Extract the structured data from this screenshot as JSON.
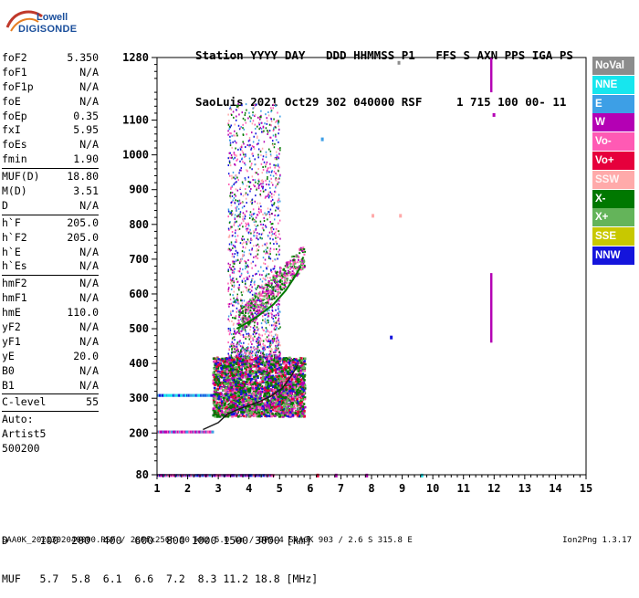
{
  "logo": {
    "brand": "Lowell",
    "product": "DIGISONDE"
  },
  "header": {
    "columns_line": "Station YYYY DAY   DDD HHMMSS P1   FFS S AXN PPS IGA PS",
    "values_line": "SaoLuis 2021 Oct29 302 040000 RSF     1 715 100 00- 11"
  },
  "params": {
    "group1": [
      {
        "name": "foF2",
        "value": "5.350"
      },
      {
        "name": "foF1",
        "value": "N/A"
      },
      {
        "name": "foF1p",
        "value": "N/A"
      },
      {
        "name": "foE",
        "value": "N/A"
      },
      {
        "name": "foEp",
        "value": "0.35"
      },
      {
        "name": "fxI",
        "value": "5.95"
      },
      {
        "name": "foEs",
        "value": "N/A"
      },
      {
        "name": "fmin",
        "value": "1.90"
      }
    ],
    "group2": [
      {
        "name": "MUF(D)",
        "value": "18.80"
      },
      {
        "name": "M(D)",
        "value": "3.51"
      },
      {
        "name": "D",
        "value": "N/A"
      }
    ],
    "group3": [
      {
        "name": "h`F",
        "value": "205.0"
      },
      {
        "name": "h`F2",
        "value": "205.0"
      },
      {
        "name": "h`E",
        "value": "N/A"
      },
      {
        "name": "h`Es",
        "value": "N/A"
      }
    ],
    "group4": [
      {
        "name": "hmF2",
        "value": "N/A"
      },
      {
        "name": "hmF1",
        "value": "N/A"
      },
      {
        "name": "hmE",
        "value": "110.0"
      },
      {
        "name": "yF2",
        "value": "N/A"
      },
      {
        "name": "yF1",
        "value": "N/A"
      },
      {
        "name": "yE",
        "value": "20.0"
      },
      {
        "name": "B0",
        "value": "N/A"
      },
      {
        "name": "B1",
        "value": "N/A"
      }
    ],
    "c_level": {
      "name": "C-level",
      "value": "55"
    },
    "auto_lines": [
      "Auto:",
      "Artist5",
      "500200"
    ]
  },
  "legend": [
    {
      "label": "NoVal",
      "color": "#8c8c8c"
    },
    {
      "label": "NNE",
      "color": "#17e6ee"
    },
    {
      "label": "E",
      "color": "#3d9fe6"
    },
    {
      "label": "W",
      "color": "#b400b4"
    },
    {
      "label": "Vo-",
      "color": "#ff5ab4"
    },
    {
      "label": "Vo+",
      "color": "#e6003c"
    },
    {
      "label": "SSW",
      "color": "#ffaaaa"
    },
    {
      "label": "X-",
      "color": "#007800"
    },
    {
      "label": "X+",
      "color": "#64b45a"
    },
    {
      "label": "SSE",
      "color": "#c8c800"
    },
    {
      "label": "NNW",
      "color": "#1414dc"
    }
  ],
  "chart_data": {
    "type": "scatter",
    "xlim": [
      1,
      15
    ],
    "ylim": [
      80,
      1280
    ],
    "x_ticks": [
      "1",
      "2",
      "3",
      "4",
      "5",
      "6",
      "7",
      "8",
      "9",
      "10",
      "11",
      "12",
      "13",
      "14",
      "15"
    ],
    "y_ticks": [
      {
        "value": 80,
        "label": "80"
      },
      {
        "value": 200,
        "label": "200"
      },
      {
        "value": 300,
        "label": "300"
      },
      {
        "value": 400,
        "label": "400"
      },
      {
        "value": 500,
        "label": "500"
      },
      {
        "value": 600,
        "label": "600"
      },
      {
        "value": 700,
        "label": "700"
      },
      {
        "value": 800,
        "label": "800"
      },
      {
        "value": 900,
        "label": "900"
      },
      {
        "value": 1000,
        "label": "1000"
      },
      {
        "value": 1100,
        "label": "1100"
      },
      {
        "value": 1280,
        "label": "1280"
      }
    ],
    "grid": false,
    "trace_o": [
      [
        2.5,
        210
      ],
      [
        3.0,
        230
      ],
      [
        3.3,
        255
      ],
      [
        3.7,
        270
      ],
      [
        4.2,
        285
      ],
      [
        4.7,
        305
      ],
      [
        5.1,
        330
      ],
      [
        5.35,
        360
      ],
      [
        5.6,
        395
      ]
    ],
    "trace_f2_upper": [
      [
        3.6,
        500
      ],
      [
        4.2,
        530
      ],
      [
        4.8,
        570
      ],
      [
        5.2,
        610
      ],
      [
        5.5,
        650
      ],
      [
        5.7,
        680
      ]
    ],
    "echo_f_layer": {
      "x_range": [
        2.8,
        5.8
      ],
      "y_range": [
        250,
        420
      ]
    },
    "echo_spread_f": {
      "x_range": [
        3.3,
        5.0
      ],
      "y_range": [
        420,
        1150
      ]
    },
    "echo_low": [
      [
        1.0,
        207
      ],
      [
        2.8,
        207
      ],
      [
        1.0,
        82
      ],
      [
        4.8,
        82
      ],
      [
        1.0,
        312
      ],
      [
        3.5,
        312
      ]
    ],
    "vertical_lines": [
      {
        "x": 11.9,
        "y_from": 1180,
        "y_to": 1280
      },
      {
        "x": 11.9,
        "y_from": 460,
        "y_to": 660
      }
    ],
    "isolated_points": [
      [
        8.0,
        830
      ],
      [
        8.9,
        830
      ],
      [
        8.6,
        480
      ],
      [
        6.8,
        83
      ],
      [
        6.2,
        83
      ],
      [
        7.8,
        83
      ],
      [
        9.6,
        83
      ],
      [
        6.35,
        1050
      ],
      [
        11.95,
        1120
      ],
      [
        8.85,
        1270
      ]
    ]
  },
  "bottom_table": {
    "d_row": "D     100  200  400  600  800 1000 1500 3000 [km]",
    "muf_row": "MUF   5.7  5.8  6.1  6.6  7.2  8.3 11.2 18.8 [MHz]"
  },
  "footer": {
    "left": "SAA0K_2021302040000.RSF / 280fx256h 50 kHz 5.0 km / DPS-4 SAA0K 903 / 2.6 S 315.8 E",
    "right": "Ion2Png 1.3.17"
  }
}
